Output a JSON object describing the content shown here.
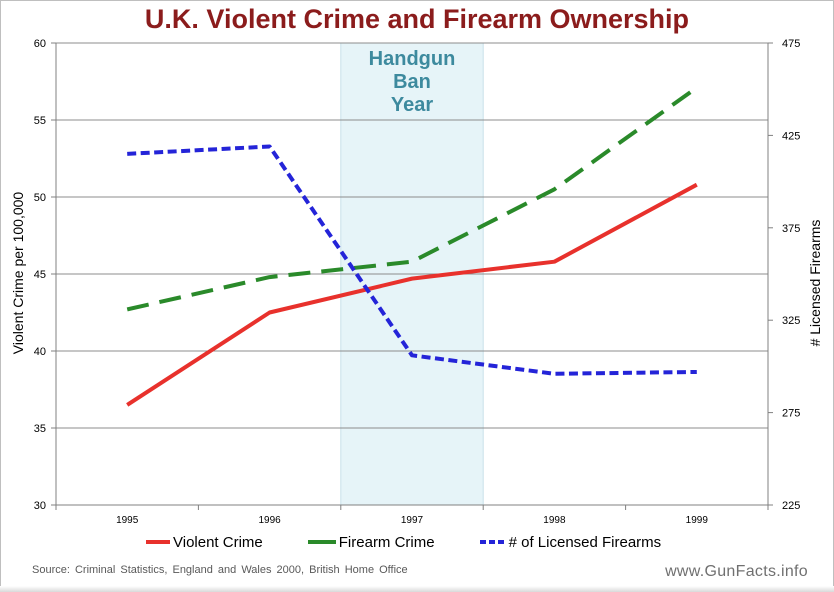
{
  "chart_data": {
    "type": "line",
    "title": "U.K. Violent Crime and Firearm Ownership",
    "categories": [
      "1995",
      "1996",
      "1997",
      "1998",
      "1999"
    ],
    "ylabel_left": "Violent Crime per 100,000",
    "ylabel_right": "# Licensed Firearms",
    "ylim_left": [
      30,
      60
    ],
    "ylim_right": [
      225,
      475
    ],
    "yticks_left": [
      "30",
      "35",
      "40",
      "45",
      "50",
      "55",
      "60"
    ],
    "yticks_right": [
      "225",
      "275",
      "325",
      "375",
      "425",
      "475"
    ],
    "grid": true,
    "legend_position": "bottom",
    "shaded_region": {
      "category": "1997",
      "label_lines": [
        "Handgun",
        "Ban",
        "Year"
      ],
      "color": "#e6f4f8"
    },
    "series": [
      {
        "name": "Violent Crime",
        "axis": "left",
        "style": "solid",
        "color": "#e8312c",
        "values": [
          36.5,
          42.5,
          44.7,
          45.8,
          50.8
        ]
      },
      {
        "name": "Firearm Crime",
        "axis": "left",
        "style": "dashed",
        "color": "#2a8a2a",
        "values": [
          42.7,
          44.8,
          45.8,
          50.5,
          57.1
        ]
      },
      {
        "name": "# of Licensed Firearms",
        "axis": "right",
        "style": "dotted",
        "color": "#2424d8",
        "values": [
          415,
          419,
          306,
          296,
          297
        ]
      }
    ]
  },
  "footer": {
    "source": "Source: Criminal Statistics, England and Wales 2000, British Home Office",
    "watermark": "www.GunFacts.info"
  }
}
